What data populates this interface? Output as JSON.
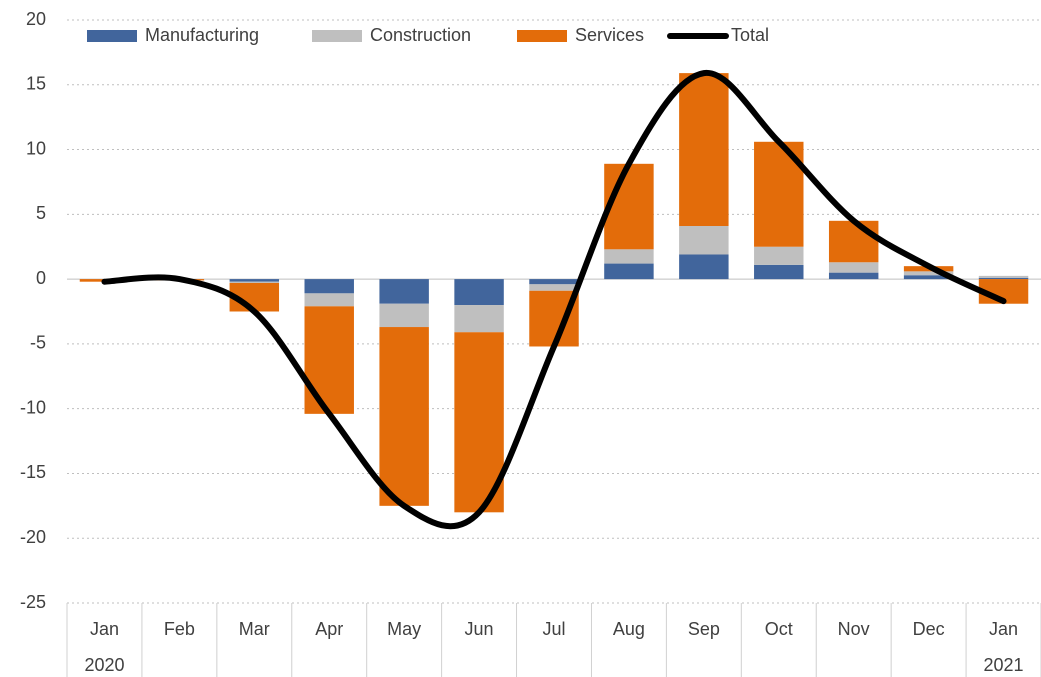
{
  "chart_data": {
    "type": "stacked_bar_line",
    "categories": [
      "Jan",
      "Feb",
      "Mar",
      "Apr",
      "May",
      "Jun",
      "Jul",
      "Aug",
      "Sep",
      "Oct",
      "Nov",
      "Dec",
      "Jan"
    ],
    "years": [
      "2020",
      null,
      null,
      null,
      null,
      null,
      null,
      null,
      null,
      null,
      null,
      null,
      "2021"
    ],
    "series": [
      {
        "name": "Manufacturing",
        "color": "#41659c",
        "values": [
          0,
          0,
          -0.2,
          -1.1,
          -1.9,
          -2.0,
          -0.4,
          1.2,
          1.9,
          1.1,
          0.5,
          0.3,
          0.1
        ]
      },
      {
        "name": "Construction",
        "color": "#bfbfbf",
        "values": [
          0,
          0,
          -0.1,
          -1.0,
          -1.8,
          -2.1,
          -0.5,
          1.1,
          2.2,
          1.4,
          0.8,
          0.3,
          0.15
        ]
      },
      {
        "name": "Services",
        "color": "#e36c0a",
        "values": [
          -0.2,
          -0.1,
          -2.2,
          -8.3,
          -13.8,
          -13.9,
          -4.3,
          6.6,
          11.8,
          8.1,
          3.2,
          0.4,
          -1.9
        ]
      },
      {
        "name": "Total",
        "color": "#000000",
        "kind": "line",
        "values": [
          -0.2,
          0,
          -2.5,
          -10.4,
          -17.5,
          -18.0,
          -5.2,
          8.9,
          15.9,
          10.6,
          4.5,
          1.0,
          -1.7
        ]
      }
    ],
    "ylim": [
      -25,
      20
    ],
    "yticks": [
      20,
      15,
      10,
      5,
      0,
      -5,
      -10,
      -15,
      -20,
      -25
    ],
    "grid": true
  }
}
